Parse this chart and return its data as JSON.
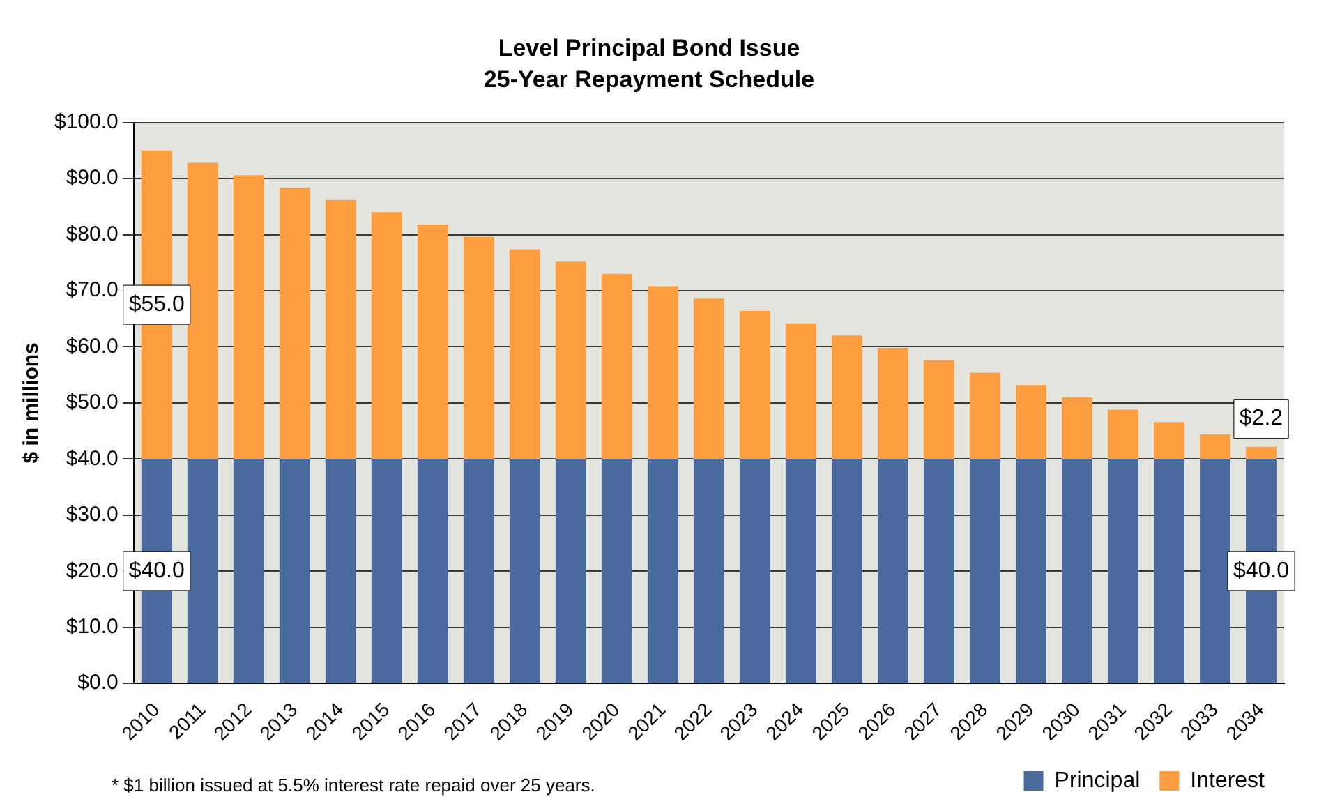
{
  "chart_data": {
    "type": "bar",
    "title": "Level Principal Bond Issue",
    "subtitle": "25-Year Repayment Schedule",
    "ylabel": "$ in millions",
    "categories": [
      "2010",
      "2011",
      "2012",
      "2013",
      "2014",
      "2015",
      "2016",
      "2017",
      "2018",
      "2019",
      "2020",
      "2021",
      "2022",
      "2023",
      "2024",
      "2025",
      "2026",
      "2027",
      "2028",
      "2029",
      "2030",
      "2031",
      "2032",
      "2033",
      "2034"
    ],
    "stacked": true,
    "series": [
      {
        "name": "Principal",
        "color": "#4a6a9e",
        "values": [
          40,
          40,
          40,
          40,
          40,
          40,
          40,
          40,
          40,
          40,
          40,
          40,
          40,
          40,
          40,
          40,
          40,
          40,
          40,
          40,
          40,
          40,
          40,
          40,
          40
        ],
        "value_labels": [
          "$40.0",
          null,
          null,
          null,
          null,
          null,
          null,
          null,
          null,
          null,
          null,
          null,
          null,
          null,
          null,
          null,
          null,
          null,
          null,
          null,
          null,
          null,
          null,
          null,
          "$40.0"
        ]
      },
      {
        "name": "Interest",
        "color": "#ff9e40",
        "values": [
          55,
          52.8,
          50.6,
          48.4,
          46.2,
          44,
          41.8,
          39.6,
          37.4,
          35.2,
          33,
          30.8,
          28.6,
          26.4,
          24.2,
          22,
          19.8,
          17.6,
          15.4,
          13.2,
          11,
          8.8,
          6.6,
          4.4,
          2.2
        ],
        "value_labels": [
          "$55.0",
          null,
          null,
          null,
          null,
          null,
          null,
          null,
          null,
          null,
          null,
          null,
          null,
          null,
          null,
          null,
          null,
          null,
          null,
          null,
          null,
          null,
          null,
          null,
          "$2.2"
        ]
      }
    ],
    "ylim": [
      0,
      100
    ],
    "yticks": [
      {
        "value": 0,
        "label": "$0.0"
      },
      {
        "value": 10,
        "label": "$10.0"
      },
      {
        "value": 20,
        "label": "$20.0"
      },
      {
        "value": 30,
        "label": "$30.0"
      },
      {
        "value": 40,
        "label": "$40.0"
      },
      {
        "value": 50,
        "label": "$50.0"
      },
      {
        "value": 60,
        "label": "$60.0"
      },
      {
        "value": 70,
        "label": "$70.0"
      },
      {
        "value": 80,
        "label": "$80.0"
      },
      {
        "value": 90,
        "label": "$90.0"
      },
      {
        "value": 100,
        "label": "$100.0"
      }
    ],
    "grid": "y",
    "legend": "bottom",
    "annotations": [
      "* $1 billion issued at 5.5% interest rate repaid over 25 years."
    ]
  }
}
